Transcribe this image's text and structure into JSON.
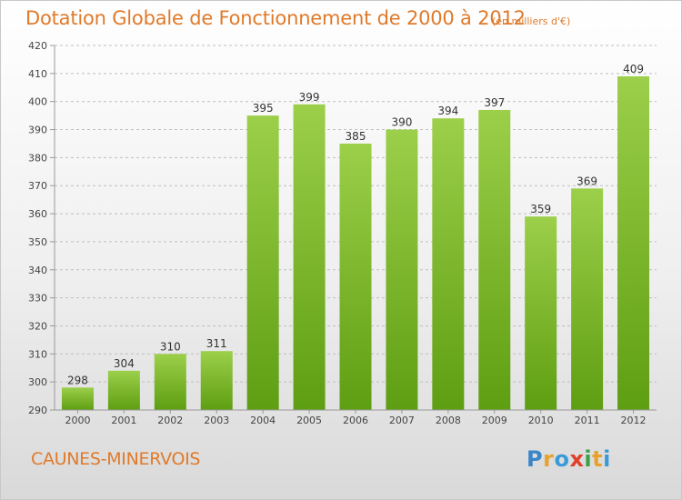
{
  "title": "Dotation Globale de Fonctionnement de 2000 à 2012",
  "subtitle": "(en milliers d'€)",
  "commune": "CAUNES-MINERVOIS",
  "logo": {
    "letters": [
      "P",
      "r",
      "o",
      "x",
      "i",
      "t",
      "i"
    ],
    "colors": [
      "#3a86c8",
      "#e8a22c",
      "#3a9ad8",
      "#e0402a",
      "#3aa04a",
      "#e8a22c",
      "#3a9ad8"
    ]
  },
  "colors": {
    "bar_top": "#9ccf4a",
    "bar_bottom": "#5e9e12",
    "text_accent": "#e07a2a",
    "grid": "#bfbfbf"
  },
  "chart_data": {
    "type": "bar",
    "categories": [
      "2000",
      "2001",
      "2002",
      "2003",
      "2004",
      "2005",
      "2006",
      "2007",
      "2008",
      "2009",
      "2010",
      "2011",
      "2012"
    ],
    "values": [
      298,
      304,
      310,
      311,
      395,
      399,
      385,
      390,
      394,
      397,
      359,
      369,
      409
    ],
    "ylim": [
      290,
      420
    ],
    "yticks": [
      290,
      300,
      310,
      320,
      330,
      340,
      350,
      360,
      370,
      380,
      390,
      400,
      410,
      420
    ],
    "grid": true,
    "data_labels": true
  }
}
